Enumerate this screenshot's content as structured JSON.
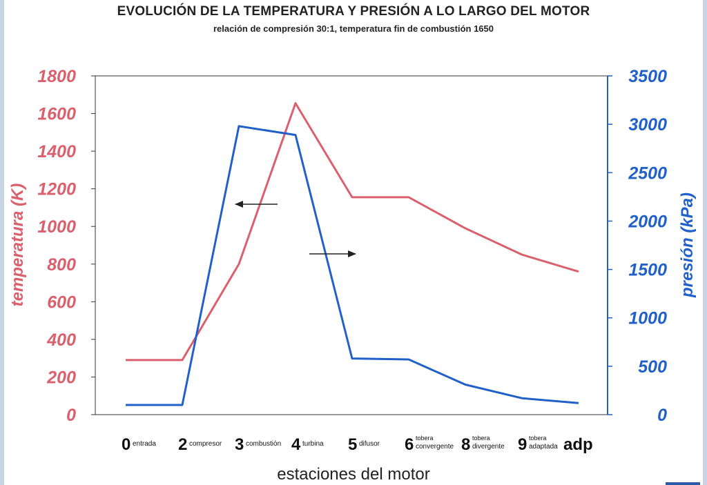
{
  "chart_data": {
    "type": "line",
    "title": "EVOLUCIÓN DE LA TEMPERATURA Y PRESIÓN A LO LARGO DEL MOTOR",
    "subtitle": "relación de compresión 30:1, temperatura fin de combustión 1650",
    "xlabel": "estaciones del motor",
    "ylabel_left": "temperatura (K)",
    "ylabel_right": "presión (kPa)",
    "ylim_left": [
      0,
      1800
    ],
    "ylim_right": [
      0,
      3500
    ],
    "yticks_left": [
      "0",
      "200",
      "400",
      "600",
      "800",
      "1000",
      "1200",
      "1400",
      "1600",
      "1800"
    ],
    "yticks_right": [
      "0",
      "500",
      "1000",
      "1500",
      "2000",
      "2500",
      "3000",
      "3500"
    ],
    "stations": [
      {
        "num": "0",
        "top": "",
        "bottom": "entrada"
      },
      {
        "num": "2",
        "top": "",
        "bottom": "compresor"
      },
      {
        "num": "3",
        "top": "",
        "bottom": "combustión"
      },
      {
        "num": "4",
        "top": "",
        "bottom": "turbina"
      },
      {
        "num": "5",
        "top": "",
        "bottom": "difusor"
      },
      {
        "num": "6",
        "top": "tobera",
        "bottom": "convergente"
      },
      {
        "num": "8",
        "top": "tobera",
        "bottom": "divergente"
      },
      {
        "num": "9",
        "top": "tobera",
        "bottom": "adaptada"
      }
    ],
    "extra_label": "adp",
    "grid": false,
    "series": [
      {
        "name": "temperatura (K)",
        "axis": "left",
        "color": "#d9606c",
        "x": [
          0,
          1,
          2,
          3,
          4,
          5,
          6,
          7,
          8
        ],
        "values": [
          290,
          290,
          800,
          1655,
          1155,
          1155,
          990,
          850,
          760
        ]
      },
      {
        "name": "presión (kPa)",
        "axis": "right",
        "color": "#2060c8",
        "x": [
          0,
          1,
          2,
          3,
          4,
          5,
          6,
          7,
          8
        ],
        "values": [
          100,
          100,
          2980,
          2890,
          580,
          570,
          310,
          170,
          120
        ]
      }
    ],
    "annotations": [
      {
        "type": "arrow",
        "direction": "left",
        "points_to": "temperatura (K)"
      },
      {
        "type": "arrow",
        "direction": "right",
        "points_to": "presión (kPa)"
      }
    ],
    "colors": {
      "left_axis": "#d9606c",
      "right_axis": "#2060c8"
    }
  }
}
